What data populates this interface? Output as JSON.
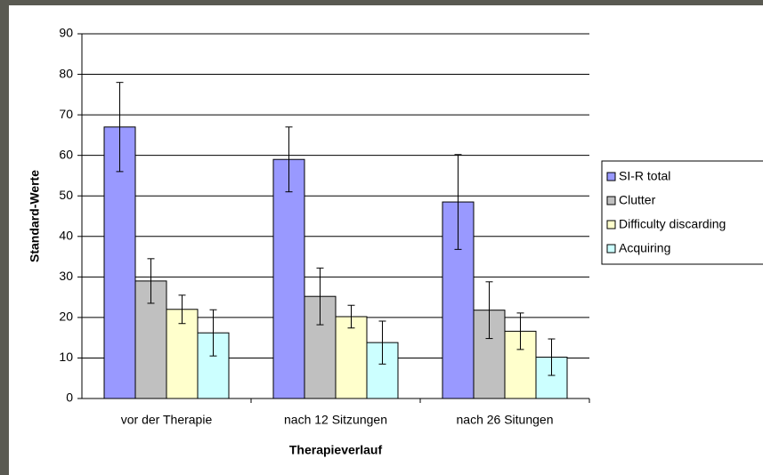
{
  "chart_data": {
    "type": "bar",
    "x_label": "Therapieverlauf",
    "y_label": "Standard-Werte",
    "categories": [
      "vor der Therapie",
      "nach 12 Sitzungen",
      "nach 26 Situngen"
    ],
    "series": [
      {
        "name": "SI-R total",
        "color": "#9999ff",
        "values": [
          67,
          59,
          48.5
        ],
        "errors": [
          11,
          8,
          11.7
        ]
      },
      {
        "name": "Clutter",
        "color": "#c0c0c0",
        "values": [
          29,
          25.2,
          21.8
        ],
        "errors": [
          5.5,
          7,
          7
        ]
      },
      {
        "name": "Difficulty discarding",
        "color": "#ffffcc",
        "values": [
          22,
          20.2,
          16.6
        ],
        "errors": [
          3.5,
          2.8,
          4.5
        ]
      },
      {
        "name": "Acquiring",
        "color": "#ccffff",
        "values": [
          16.2,
          13.8,
          10.2
        ],
        "errors": [
          5.7,
          5.3,
          4.5
        ]
      }
    ],
    "ylim": [
      0,
      90
    ],
    "yticks": [
      0,
      10,
      20,
      30,
      40,
      50,
      60,
      70,
      80,
      90
    ],
    "grid": true,
    "legend": "right"
  }
}
